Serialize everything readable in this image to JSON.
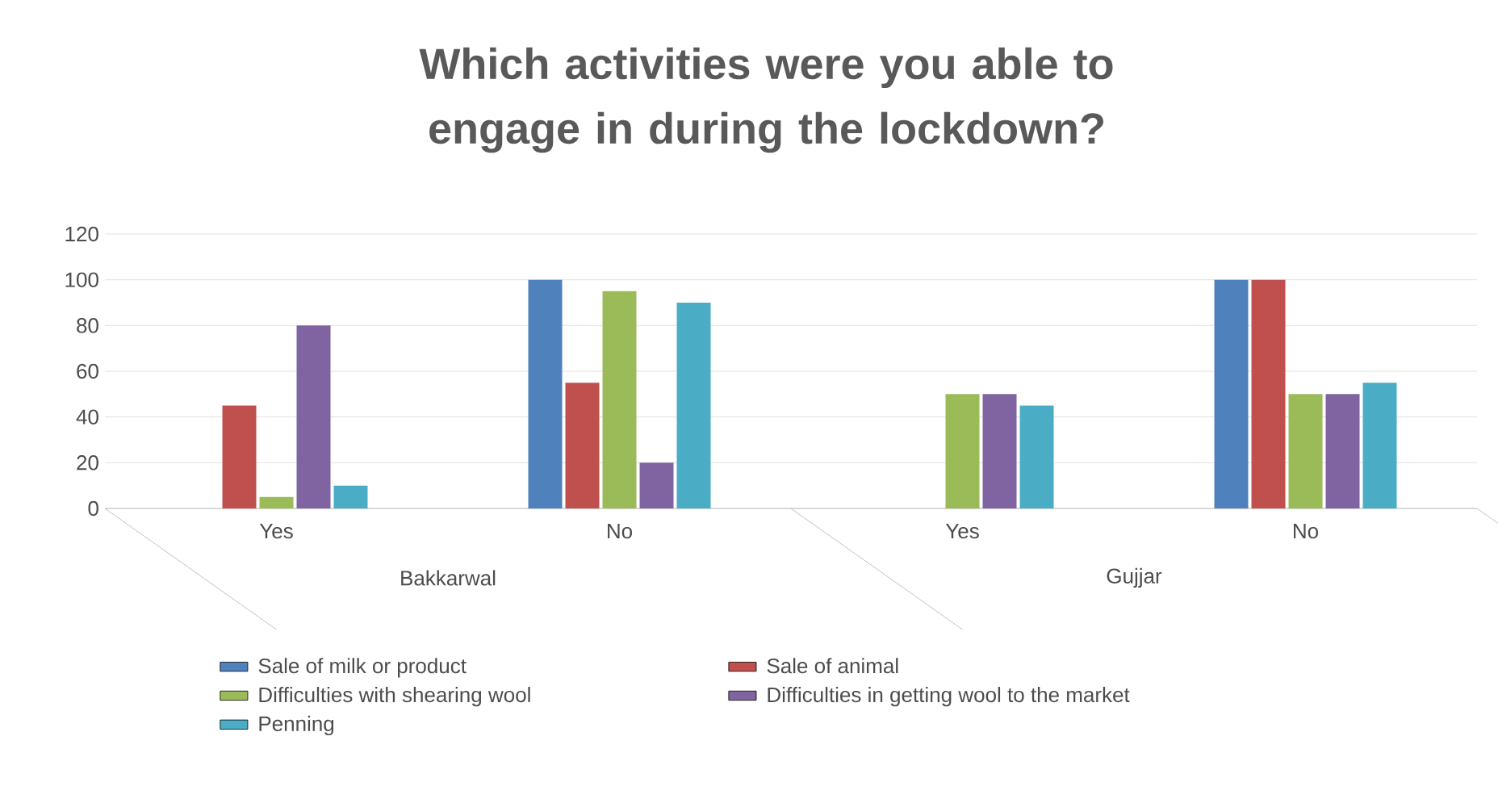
{
  "chart_data": {
    "type": "bar",
    "title": "Which activities were you able to engage in during the lockdown?",
    "categories": [
      "Yes",
      "No",
      "Yes",
      "No"
    ],
    "series": [
      {
        "name": "Sale of milk or product",
        "color": "#4f81bd",
        "values": [
          0,
          100,
          0,
          100
        ]
      },
      {
        "name": "Sale of animal",
        "color": "#c0504d",
        "values": [
          45,
          55,
          0,
          100
        ]
      },
      {
        "name": "Difficulties with shearing wool",
        "color": "#9bbb59",
        "values": [
          5,
          95,
          50,
          50
        ]
      },
      {
        "name": "Difficulties in getting wool to the market",
        "color": "#8064a2",
        "values": [
          80,
          20,
          50,
          50
        ]
      },
      {
        "name": "Penning",
        "color": "#4bacc6",
        "values": [
          10,
          90,
          45,
          55
        ]
      }
    ],
    "annotations": [
      "Bakkarwal",
      "Gujjar"
    ],
    "ylim": [
      0,
      120
    ],
    "yticks": [
      0,
      20,
      40,
      60,
      80,
      100,
      120
    ],
    "grid": "y",
    "legend": "bottom"
  }
}
